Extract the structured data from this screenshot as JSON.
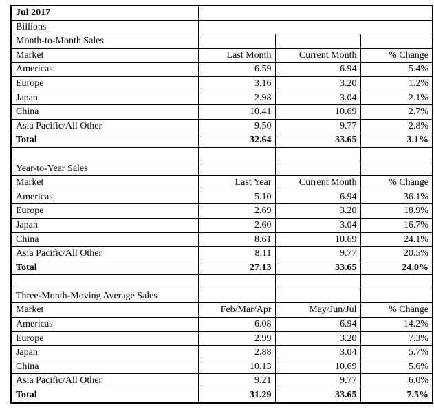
{
  "report": {
    "title": "Jul 2017",
    "unit": "Billions",
    "sections": [
      {
        "name": "Month-to-Month Sales",
        "headers": [
          "Market",
          "Last Month",
          "Current Month",
          "% Change"
        ],
        "rows": [
          [
            "Americas",
            "6.59",
            "6.94",
            "5.4%"
          ],
          [
            "Europe",
            "3.16",
            "3.20",
            "1.2%"
          ],
          [
            "Japan",
            "2.98",
            "3.04",
            "2.1%"
          ],
          [
            "China",
            "10.41",
            "10.69",
            "2.7%"
          ],
          [
            "Asia Pacific/All Other",
            "9.50",
            "9.77",
            "2.8%"
          ]
        ],
        "total": [
          "Total",
          "32.64",
          "33.65",
          "3.1%"
        ]
      },
      {
        "name": "Year-to-Year Sales",
        "headers": [
          "Market",
          "Last Year",
          "Current Month",
          "% Change"
        ],
        "rows": [
          [
            "Americas",
            "5.10",
            "6.94",
            "36.1%"
          ],
          [
            "Europe",
            "2.69",
            "3.20",
            "18.9%"
          ],
          [
            "Japan",
            "2.60",
            "3.04",
            "16.7%"
          ],
          [
            "China",
            "8.61",
            "10.69",
            "24.1%"
          ],
          [
            "Asia Pacific/All Other",
            "8.11",
            "9.77",
            "20.5%"
          ]
        ],
        "total": [
          "Total",
          "27.13",
          "33.65",
          "24.0%"
        ]
      },
      {
        "name": "Three-Month-Moving Average Sales",
        "headers": [
          "Market",
          "Feb/Mar/Apr",
          "May/Jun/Jul",
          "% Change"
        ],
        "rows": [
          [
            "Americas",
            "6.08",
            "6.94",
            "14.2%"
          ],
          [
            "Europe",
            "2.99",
            "3.20",
            "7.3%"
          ],
          [
            "Japan",
            "2.88",
            "3.04",
            "5.7%"
          ],
          [
            "China",
            "10.13",
            "10.69",
            "5.6%"
          ],
          [
            "Asia Pacific/All Other",
            "9.21",
            "9.77",
            "6.0%"
          ]
        ],
        "total": [
          "Total",
          "31.29",
          "33.65",
          "7.5%"
        ]
      }
    ]
  },
  "colors": {
    "text": "#000000",
    "border": "#000000",
    "background": "#ffffff"
  }
}
